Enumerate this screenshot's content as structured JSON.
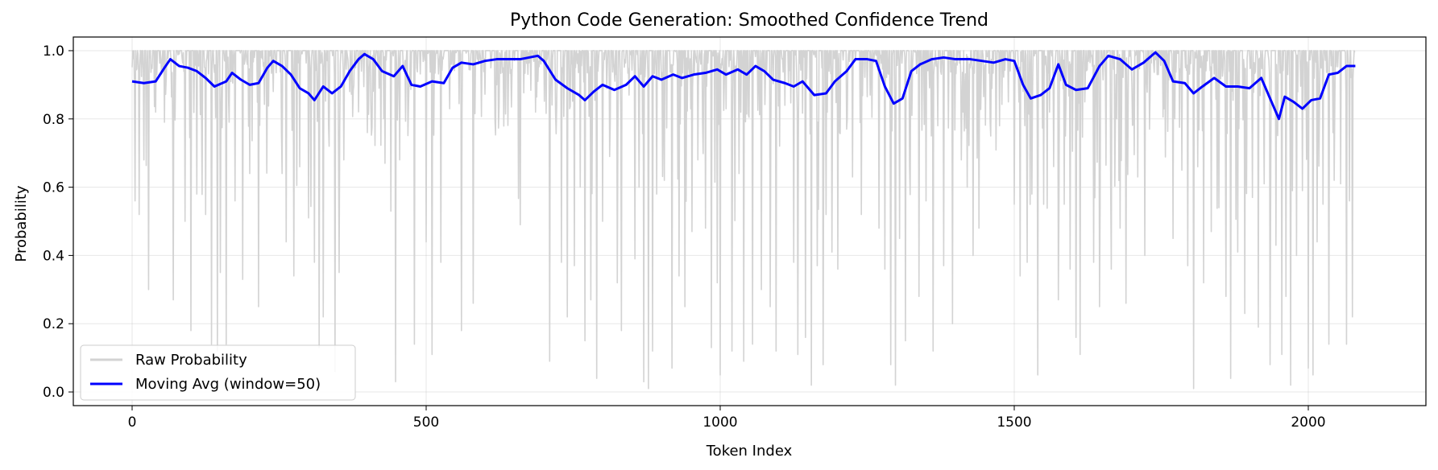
{
  "chart_data": {
    "type": "line",
    "title": "Python Code Generation: Smoothed Confidence Trend",
    "xlabel": "Token Index",
    "ylabel": "Probability",
    "xlim": [
      -100,
      2200
    ],
    "ylim": [
      -0.04,
      1.04
    ],
    "x_ticks": [
      0,
      500,
      1000,
      1500,
      2000
    ],
    "x_tick_labels": [
      "0",
      "500",
      "1000",
      "1500",
      "2000"
    ],
    "y_ticks": [
      0.0,
      0.2,
      0.4,
      0.6,
      0.8,
      1.0
    ],
    "y_tick_labels": [
      "0.0",
      "0.2",
      "0.4",
      "0.6",
      "0.8",
      "1.0"
    ],
    "grid": true,
    "legend_position": "lower-left",
    "n_tokens": 2080,
    "series": [
      {
        "name": "Raw Probability",
        "color": "#d3d3d3",
        "note_values": "baseline near 1.0 with frequent downward spikes",
        "dips": [
          [
            5,
            0.56
          ],
          [
            12,
            0.52
          ],
          [
            20,
            0.68
          ],
          [
            28,
            0.3
          ],
          [
            40,
            0.82
          ],
          [
            58,
            0.92
          ],
          [
            70,
            0.27
          ],
          [
            90,
            0.5
          ],
          [
            100,
            0.18
          ],
          [
            110,
            0.58
          ],
          [
            125,
            0.52
          ],
          [
            135,
            0.14
          ],
          [
            145,
            0.12
          ],
          [
            150,
            0.35
          ],
          [
            160,
            0.14
          ],
          [
            175,
            0.56
          ],
          [
            188,
            0.33
          ],
          [
            200,
            0.64
          ],
          [
            215,
            0.25
          ],
          [
            230,
            0.88
          ],
          [
            255,
            0.64
          ],
          [
            262,
            0.44
          ],
          [
            275,
            0.34
          ],
          [
            285,
            0.66
          ],
          [
            300,
            0.51
          ],
          [
            310,
            0.38
          ],
          [
            318,
            0.13
          ],
          [
            325,
            0.22
          ],
          [
            335,
            0.72
          ],
          [
            345,
            0.06
          ],
          [
            352,
            0.35
          ],
          [
            360,
            0.68
          ],
          [
            370,
            0.88
          ],
          [
            390,
            0.94
          ],
          [
            400,
            0.76
          ],
          [
            420,
            0.89
          ],
          [
            430,
            0.67
          ],
          [
            440,
            0.53
          ],
          [
            448,
            0.03
          ],
          [
            455,
            0.68
          ],
          [
            470,
            0.84
          ],
          [
            480,
            0.14
          ],
          [
            500,
            0.44
          ],
          [
            510,
            0.11
          ],
          [
            525,
            0.38
          ],
          [
            540,
            0.83
          ],
          [
            560,
            0.18
          ],
          [
            580,
            0.26
          ],
          [
            620,
            0.9
          ],
          [
            640,
            0.93
          ],
          [
            660,
            0.49
          ],
          [
            690,
            0.91
          ],
          [
            710,
            0.09
          ],
          [
            720,
            0.82
          ],
          [
            730,
            0.38
          ],
          [
            740,
            0.22
          ],
          [
            752,
            0.37
          ],
          [
            762,
            0.6
          ],
          [
            770,
            0.15
          ],
          [
            780,
            0.27
          ],
          [
            790,
            0.04
          ],
          [
            800,
            0.5
          ],
          [
            812,
            0.69
          ],
          [
            825,
            0.32
          ],
          [
            832,
            0.18
          ],
          [
            845,
            0.87
          ],
          [
            855,
            0.39
          ],
          [
            862,
            0.6
          ],
          [
            870,
            0.03
          ],
          [
            878,
            0.01
          ],
          [
            885,
            0.12
          ],
          [
            892,
            0.58
          ],
          [
            905,
            0.62
          ],
          [
            918,
            0.07
          ],
          [
            930,
            0.34
          ],
          [
            940,
            0.25
          ],
          [
            952,
            0.47
          ],
          [
            962,
            0.68
          ],
          [
            975,
            0.48
          ],
          [
            985,
            0.13
          ],
          [
            995,
            0.32
          ],
          [
            1000,
            0.05
          ],
          [
            1010,
            0.83
          ],
          [
            1020,
            0.12
          ],
          [
            1032,
            0.64
          ],
          [
            1040,
            0.09
          ],
          [
            1055,
            0.14
          ],
          [
            1070,
            0.3
          ],
          [
            1085,
            0.25
          ],
          [
            1095,
            0.12
          ],
          [
            1110,
            0.84
          ],
          [
            1125,
            0.38
          ],
          [
            1132,
            0.11
          ],
          [
            1145,
            0.16
          ],
          [
            1155,
            0.02
          ],
          [
            1165,
            0.37
          ],
          [
            1175,
            0.08
          ],
          [
            1180,
            0.52
          ],
          [
            1190,
            0.41
          ],
          [
            1200,
            0.36
          ],
          [
            1215,
            0.77
          ],
          [
            1225,
            0.63
          ],
          [
            1240,
            0.52
          ],
          [
            1255,
            0.87
          ],
          [
            1270,
            0.48
          ],
          [
            1280,
            0.36
          ],
          [
            1290,
            0.08
          ],
          [
            1298,
            0.02
          ],
          [
            1305,
            0.45
          ],
          [
            1315,
            0.15
          ],
          [
            1322,
            0.66
          ],
          [
            1338,
            0.28
          ],
          [
            1350,
            0.56
          ],
          [
            1362,
            0.12
          ],
          [
            1370,
            0.78
          ],
          [
            1380,
            0.37
          ],
          [
            1395,
            0.2
          ],
          [
            1410,
            0.68
          ],
          [
            1420,
            0.6
          ],
          [
            1430,
            0.4
          ],
          [
            1440,
            0.48
          ],
          [
            1460,
            0.75
          ],
          [
            1475,
            0.78
          ],
          [
            1490,
            0.85
          ],
          [
            1500,
            0.55
          ],
          [
            1510,
            0.34
          ],
          [
            1522,
            0.38
          ],
          [
            1530,
            0.58
          ],
          [
            1540,
            0.05
          ],
          [
            1550,
            0.55
          ],
          [
            1560,
            0.82
          ],
          [
            1575,
            0.27
          ],
          [
            1585,
            0.55
          ],
          [
            1595,
            0.36
          ],
          [
            1605,
            0.16
          ],
          [
            1612,
            0.11
          ],
          [
            1620,
            0.85
          ],
          [
            1635,
            0.38
          ],
          [
            1645,
            0.25
          ],
          [
            1655,
            0.92
          ],
          [
            1665,
            0.36
          ],
          [
            1680,
            0.48
          ],
          [
            1690,
            0.26
          ],
          [
            1700,
            0.9
          ],
          [
            1710,
            0.63
          ],
          [
            1722,
            0.4
          ],
          [
            1730,
            0.77
          ],
          [
            1745,
            0.93
          ],
          [
            1755,
            0.83
          ],
          [
            1770,
            0.45
          ],
          [
            1785,
            0.65
          ],
          [
            1795,
            0.37
          ],
          [
            1805,
            0.01
          ],
          [
            1812,
            0.66
          ],
          [
            1822,
            0.32
          ],
          [
            1835,
            0.47
          ],
          [
            1848,
            0.54
          ],
          [
            1860,
            0.28
          ],
          [
            1868,
            0.04
          ],
          [
            1880,
            0.41
          ],
          [
            1892,
            0.23
          ],
          [
            1905,
            0.57
          ],
          [
            1915,
            0.19
          ],
          [
            1925,
            0.61
          ],
          [
            1935,
            0.08
          ],
          [
            1945,
            0.43
          ],
          [
            1955,
            0.11
          ],
          [
            1962,
            0.28
          ],
          [
            1970,
            0.02
          ],
          [
            1980,
            0.4
          ],
          [
            1990,
            0.59
          ],
          [
            2000,
            0.07
          ],
          [
            2008,
            0.05
          ],
          [
            2015,
            0.44
          ],
          [
            2025,
            0.55
          ],
          [
            2035,
            0.14
          ],
          [
            2045,
            0.82
          ],
          [
            2055,
            0.61
          ],
          [
            2065,
            0.14
          ],
          [
            2070,
            0.56
          ],
          [
            2075,
            0.22
          ]
        ]
      },
      {
        "name": "Moving Avg (window=50)",
        "color": "#0000ff",
        "points": [
          [
            0,
            0.91
          ],
          [
            20,
            0.905
          ],
          [
            40,
            0.91
          ],
          [
            55,
            0.95
          ],
          [
            65,
            0.975
          ],
          [
            80,
            0.955
          ],
          [
            95,
            0.95
          ],
          [
            110,
            0.94
          ],
          [
            125,
            0.92
          ],
          [
            140,
            0.895
          ],
          [
            160,
            0.91
          ],
          [
            170,
            0.935
          ],
          [
            185,
            0.915
          ],
          [
            200,
            0.9
          ],
          [
            215,
            0.905
          ],
          [
            230,
            0.95
          ],
          [
            240,
            0.97
          ],
          [
            255,
            0.955
          ],
          [
            270,
            0.93
          ],
          [
            285,
            0.89
          ],
          [
            300,
            0.875
          ],
          [
            310,
            0.855
          ],
          [
            325,
            0.895
          ],
          [
            340,
            0.875
          ],
          [
            355,
            0.895
          ],
          [
            370,
            0.94
          ],
          [
            385,
            0.975
          ],
          [
            395,
            0.99
          ],
          [
            410,
            0.975
          ],
          [
            425,
            0.94
          ],
          [
            445,
            0.925
          ],
          [
            460,
            0.955
          ],
          [
            475,
            0.9
          ],
          [
            490,
            0.895
          ],
          [
            510,
            0.91
          ],
          [
            530,
            0.905
          ],
          [
            545,
            0.95
          ],
          [
            560,
            0.965
          ],
          [
            580,
            0.96
          ],
          [
            600,
            0.97
          ],
          [
            620,
            0.975
          ],
          [
            660,
            0.975
          ],
          [
            690,
            0.985
          ],
          [
            700,
            0.97
          ],
          [
            720,
            0.915
          ],
          [
            740,
            0.89
          ],
          [
            760,
            0.87
          ],
          [
            770,
            0.855
          ],
          [
            785,
            0.88
          ],
          [
            800,
            0.9
          ],
          [
            820,
            0.885
          ],
          [
            840,
            0.9
          ],
          [
            855,
            0.925
          ],
          [
            870,
            0.895
          ],
          [
            885,
            0.925
          ],
          [
            900,
            0.915
          ],
          [
            920,
            0.93
          ],
          [
            935,
            0.92
          ],
          [
            955,
            0.93
          ],
          [
            975,
            0.935
          ],
          [
            995,
            0.945
          ],
          [
            1010,
            0.93
          ],
          [
            1030,
            0.945
          ],
          [
            1045,
            0.93
          ],
          [
            1060,
            0.955
          ],
          [
            1075,
            0.94
          ],
          [
            1090,
            0.915
          ],
          [
            1110,
            0.905
          ],
          [
            1125,
            0.895
          ],
          [
            1140,
            0.91
          ],
          [
            1160,
            0.87
          ],
          [
            1180,
            0.875
          ],
          [
            1195,
            0.91
          ],
          [
            1215,
            0.94
          ],
          [
            1230,
            0.975
          ],
          [
            1250,
            0.975
          ],
          [
            1265,
            0.97
          ],
          [
            1280,
            0.895
          ],
          [
            1295,
            0.845
          ],
          [
            1310,
            0.86
          ],
          [
            1325,
            0.94
          ],
          [
            1340,
            0.96
          ],
          [
            1360,
            0.975
          ],
          [
            1380,
            0.98
          ],
          [
            1400,
            0.975
          ],
          [
            1425,
            0.975
          ],
          [
            1445,
            0.97
          ],
          [
            1465,
            0.965
          ],
          [
            1485,
            0.975
          ],
          [
            1500,
            0.97
          ],
          [
            1515,
            0.9
          ],
          [
            1528,
            0.86
          ],
          [
            1545,
            0.87
          ],
          [
            1560,
            0.89
          ],
          [
            1575,
            0.96
          ],
          [
            1588,
            0.9
          ],
          [
            1605,
            0.885
          ],
          [
            1625,
            0.89
          ],
          [
            1645,
            0.955
          ],
          [
            1660,
            0.985
          ],
          [
            1680,
            0.975
          ],
          [
            1700,
            0.945
          ],
          [
            1720,
            0.965
          ],
          [
            1740,
            0.995
          ],
          [
            1755,
            0.97
          ],
          [
            1770,
            0.91
          ],
          [
            1790,
            0.905
          ],
          [
            1805,
            0.875
          ],
          [
            1820,
            0.895
          ],
          [
            1840,
            0.92
          ],
          [
            1860,
            0.895
          ],
          [
            1880,
            0.895
          ],
          [
            1900,
            0.89
          ],
          [
            1920,
            0.92
          ],
          [
            1940,
            0.84
          ],
          [
            1950,
            0.8
          ],
          [
            1960,
            0.865
          ],
          [
            1975,
            0.85
          ],
          [
            1990,
            0.83
          ],
          [
            2005,
            0.855
          ],
          [
            2020,
            0.86
          ],
          [
            2035,
            0.93
          ],
          [
            2050,
            0.935
          ],
          [
            2065,
            0.955
          ],
          [
            2080,
            0.955
          ]
        ]
      }
    ]
  }
}
